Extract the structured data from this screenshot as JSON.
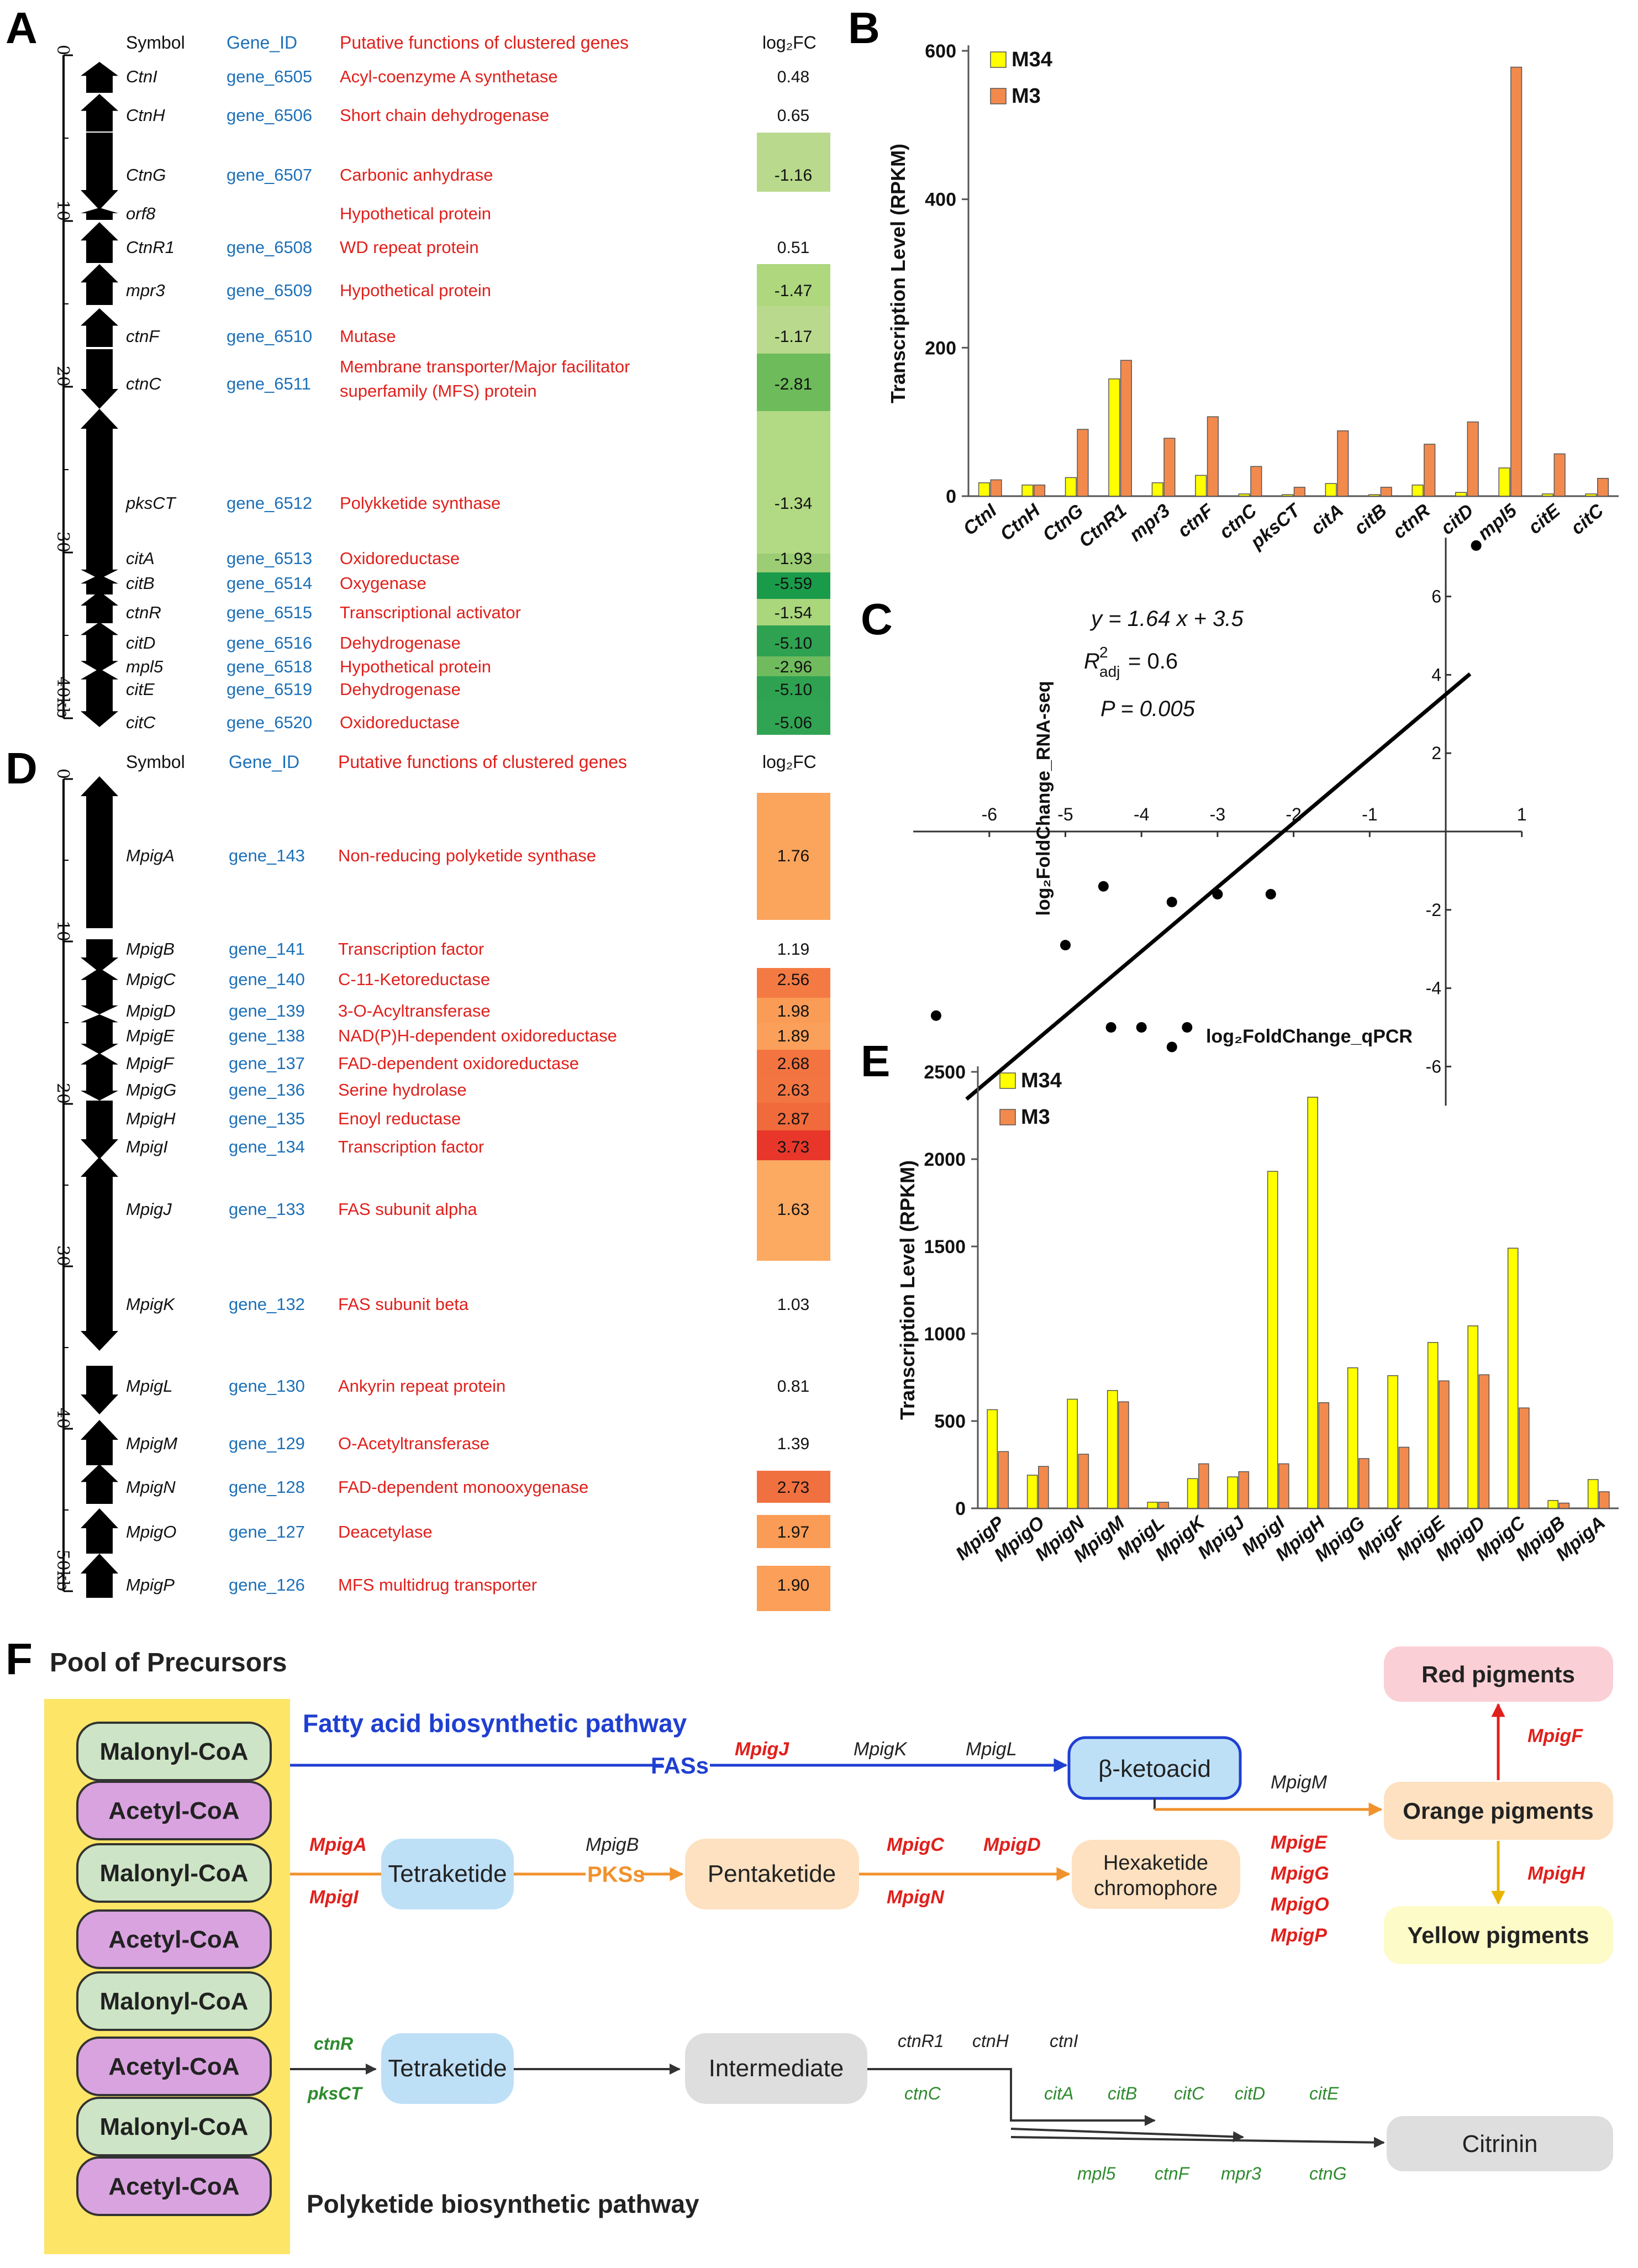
{
  "panel_letters": {
    "a": "A",
    "b": "B",
    "c": "C",
    "d": "D",
    "e": "E",
    "f": "F"
  },
  "panel_a": {
    "headers": {
      "symbol": "Symbol",
      "gene_id": "Gene_ID",
      "function": "Putative functions of clustered genes",
      "fc": "log₂FC"
    },
    "ruler": {
      "ticks": [
        "0",
        "10",
        "20",
        "30",
        "40kb"
      ]
    },
    "rows": [
      {
        "symbol": "CtnI",
        "gene_id": "gene_6505",
        "function": [
          "Acyl-coenzyme A synthetase"
        ],
        "fc": "0.48",
        "cell": "none",
        "dir": "up"
      },
      {
        "symbol": "CtnH",
        "gene_id": "gene_6506",
        "function": [
          "Short chain dehydrogenase"
        ],
        "fc": "0.65",
        "cell": "none",
        "dir": "up"
      },
      {
        "symbol": "CtnG",
        "gene_id": "gene_6507",
        "function": [
          "Carbonic anhydrase"
        ],
        "fc": "-1.16",
        "cell": "#b9d98c",
        "dir": "down"
      },
      {
        "symbol": "orf8",
        "gene_id": "",
        "function": [
          "Hypothetical protein"
        ],
        "fc": "",
        "cell": "none",
        "dir": "up"
      },
      {
        "symbol": "CtnR1",
        "gene_id": "gene_6508",
        "function": [
          "WD repeat protein"
        ],
        "fc": "0.51",
        "cell": "none",
        "dir": "up"
      },
      {
        "symbol": "mpr3",
        "gene_id": "gene_6509",
        "function": [
          "Hypothetical protein"
        ],
        "fc": "-1.47",
        "cell": "#aed77e",
        "dir": "up"
      },
      {
        "symbol": "ctnF",
        "gene_id": "gene_6510",
        "function": [
          "Mutase"
        ],
        "fc": "-1.17",
        "cell": "#b9d98c",
        "dir": "up"
      },
      {
        "symbol": "ctnC",
        "gene_id": "gene_6511",
        "function": [
          "Membrane transporter/Major facilitator",
          "superfamily (MFS) protein"
        ],
        "fc": "-2.81",
        "cell": "#6dbb5b",
        "dir": "down"
      },
      {
        "symbol": "pksCT",
        "gene_id": "gene_6512",
        "function": [
          "Polykketide synthase"
        ],
        "fc": "-1.34",
        "cell": "#b2d983",
        "dir": "up"
      },
      {
        "symbol": "citA",
        "gene_id": "gene_6513",
        "function": [
          "Oxidoreductase"
        ],
        "fc": "-1.93",
        "cell": "#9ccd74",
        "dir": "down"
      },
      {
        "symbol": "citB",
        "gene_id": "gene_6514",
        "function": [
          "Oxygenase"
        ],
        "fc": "-5.59",
        "cell": "#1a9b4a",
        "dir": "up"
      },
      {
        "symbol": "ctnR",
        "gene_id": "gene_6515",
        "function": [
          "Transcriptional activator"
        ],
        "fc": "-1.54",
        "cell": "#aad67c",
        "dir": "up"
      },
      {
        "symbol": "citD",
        "gene_id": "gene_6516",
        "function": [
          "Dehydrogenase"
        ],
        "fc": "-5.10",
        "cell": "#2ea251",
        "dir": "up"
      },
      {
        "symbol": "mpl5",
        "gene_id": "gene_6518",
        "function": [
          "Hypothetical protein"
        ],
        "fc": "-2.96",
        "cell": "#6fbb5e",
        "dir": "down"
      },
      {
        "symbol": "citE",
        "gene_id": "gene_6519",
        "function": [
          "Dehydrogenase"
        ],
        "fc": "-5.10",
        "cell": "#2ea251",
        "dir": "up"
      },
      {
        "symbol": "citC",
        "gene_id": "gene_6520",
        "function": [
          "Oxidoreductase"
        ],
        "fc": "-5.06",
        "cell": "#31a453",
        "dir": "down"
      }
    ]
  },
  "panel_d": {
    "headers": {
      "symbol": "Symbol",
      "gene_id": "Gene_ID",
      "function": "Putative functions of clustered genes",
      "fc": "log₂FC"
    },
    "ruler": {
      "ticks": [
        "0",
        "10",
        "20",
        "30",
        "40",
        "50kb"
      ]
    },
    "rows": [
      {
        "symbol": "MpigA",
        "gene_id": "gene_143",
        "function": "Non-reducing polyketide synthase",
        "fc": "1.76",
        "cell": "#fba45c",
        "dir": "up"
      },
      {
        "symbol": "MpigB",
        "gene_id": "gene_141",
        "function": "Transcription factor",
        "fc": "1.19",
        "cell": "none",
        "dir": "down"
      },
      {
        "symbol": "MpigC",
        "gene_id": "gene_140",
        "function": "C-11-Ketoreductase",
        "fc": "2.56",
        "cell": "#f47a44",
        "dir": "up"
      },
      {
        "symbol": "MpigD",
        "gene_id": "gene_139",
        "function": "3-O-Acyltransferase",
        "fc": "1.98",
        "cell": "#fa9c56",
        "dir": "down"
      },
      {
        "symbol": "MpigE",
        "gene_id": "gene_138",
        "function": "NAD(P)H-dependent oxidoreductase",
        "fc": "1.89",
        "cell": "#fba05a",
        "dir": "up"
      },
      {
        "symbol": "MpigF",
        "gene_id": "gene_137",
        "function": "FAD-dependent oxidoreductase",
        "fc": "2.68",
        "cell": "#f37440",
        "dir": "down"
      },
      {
        "symbol": "MpigG",
        "gene_id": "gene_136",
        "function": "Serine hydrolase",
        "fc": "2.63",
        "cell": "#f37642",
        "dir": "up"
      },
      {
        "symbol": "MpigH",
        "gene_id": "gene_135",
        "function": "Enoyl reductase",
        "fc": "2.87",
        "cell": "#f06a3b",
        "dir": "down"
      },
      {
        "symbol": "MpigI",
        "gene_id": "gene_134",
        "function": "Transcription factor",
        "fc": "3.73",
        "cell": "#e8372a",
        "dir": "down"
      },
      {
        "symbol": "MpigJ",
        "gene_id": "gene_133",
        "function": "FAS subunit alpha",
        "fc": "1.63",
        "cell": "#fca961",
        "dir": "up"
      },
      {
        "symbol": "MpigK",
        "gene_id": "gene_132",
        "function": "FAS subunit beta",
        "fc": "1.03",
        "cell": "none",
        "dir": "down"
      },
      {
        "symbol": "MpigL",
        "gene_id": "gene_130",
        "function": "Ankyrin repeat protein",
        "fc": "0.81",
        "cell": "none",
        "dir": "down"
      },
      {
        "symbol": "MpigM",
        "gene_id": "gene_129",
        "function": "O-Acetyltransferase",
        "fc": "1.39",
        "cell": "none",
        "dir": "up"
      },
      {
        "symbol": "MpigN",
        "gene_id": "gene_128",
        "function": "FAD-dependent monooxygenase",
        "fc": "2.73",
        "cell": "#f1703f",
        "dir": "up"
      },
      {
        "symbol": "MpigO",
        "gene_id": "gene_127",
        "function": "Deacetylase",
        "fc": "1.97",
        "cell": "#fa9c56",
        "dir": "up"
      },
      {
        "symbol": "MpigP",
        "gene_id": "gene_126",
        "function": "MFS multidrug transporter",
        "fc": "1.90",
        "cell": "#fb9f59",
        "dir": "up"
      }
    ]
  },
  "chart_data": [
    {
      "id": "B",
      "type": "bar",
      "title": "",
      "xlabel": "",
      "ylabel": "Transcription Level (RPKM)",
      "ylim": [
        0,
        600
      ],
      "yticks": [
        "0",
        "200",
        "400",
        "600"
      ],
      "categories": [
        "CtnI",
        "CtnH",
        "CtnG",
        "CtnR1",
        "mpr3",
        "ctnF",
        "ctnC",
        "pksCT",
        "citA",
        "citB",
        "ctnR",
        "citD",
        "mpl5",
        "citE",
        "citC"
      ],
      "series": [
        {
          "name": "M34",
          "color": "#ffff00",
          "values": [
            18,
            15,
            25,
            158,
            18,
            28,
            3,
            2,
            17,
            2,
            15,
            5,
            38,
            3,
            3
          ]
        },
        {
          "name": "M3",
          "color": "#f28a4d",
          "values": [
            22,
            15,
            90,
            183,
            78,
            107,
            40,
            12,
            88,
            12,
            70,
            100,
            578,
            57,
            24
          ]
        }
      ],
      "legend": "top-left"
    },
    {
      "id": "C",
      "type": "scatter",
      "xlabel": "log₂FoldChange_qPCR",
      "ylabel": "log₂FoldChange_RNA-seq",
      "xlim": [
        -7,
        1
      ],
      "ylim": [
        -7,
        7.5
      ],
      "xticks": [
        "-6",
        "-5",
        "-4",
        "-3",
        "-2",
        "-1",
        "1"
      ],
      "yticks": [
        "-6",
        "-4",
        "-2",
        "2",
        "4",
        "6"
      ],
      "annotations": {
        "equation": "y = 1.64 x + 3.5",
        "r2_label": "R",
        "r2_sup": "2",
        "r2_sub": "adj",
        "r2_value": "= 0.6",
        "p_value": "P = 0.005"
      },
      "regression": {
        "slope": 1.64,
        "intercept": 3.5,
        "x_range": [
          -6.3,
          0.32
        ]
      },
      "points": [
        [
          0.4,
          7.3
        ],
        [
          -4.5,
          -1.4
        ],
        [
          -3.6,
          -1.8
        ],
        [
          -3.0,
          -1.6
        ],
        [
          -2.3,
          -1.6
        ],
        [
          -5.0,
          -2.9
        ],
        [
          -6.7,
          -4.7
        ],
        [
          -4.4,
          -5.0
        ],
        [
          -4.0,
          -5.0
        ],
        [
          -3.4,
          -5.0
        ],
        [
          -3.6,
          -5.5
        ]
      ]
    },
    {
      "id": "E",
      "type": "bar",
      "title": "",
      "xlabel": "",
      "ylabel": "Transcription Level (RPKM)",
      "ylim": [
        0,
        2500
      ],
      "yticks": [
        "0",
        "500",
        "1000",
        "1500",
        "2000",
        "2500"
      ],
      "categories": [
        "MpigP",
        "MpigO",
        "MpigN",
        "MpigM",
        "MpigL",
        "MpigK",
        "MpigJ",
        "MpigI",
        "MpigH",
        "MpigG",
        "MpigF",
        "MpigE",
        "MpigD",
        "MpigC",
        "MpigB",
        "MpigA"
      ],
      "series": [
        {
          "name": "M34",
          "color": "#ffff00",
          "values": [
            565,
            190,
            625,
            675,
            35,
            170,
            180,
            1930,
            2355,
            805,
            760,
            950,
            1045,
            1490,
            45,
            165
          ]
        },
        {
          "name": "M3",
          "color": "#f28a4d",
          "values": [
            325,
            240,
            310,
            610,
            35,
            255,
            210,
            255,
            605,
            285,
            350,
            730,
            765,
            575,
            30,
            95
          ]
        }
      ],
      "legend": "top-left"
    }
  ],
  "panel_f": {
    "title": "Pool of Precursors",
    "pool": [
      "Malonyl-CoA",
      "Acetyl-CoA",
      "Malonyl-CoA",
      "Acetyl-CoA",
      "Malonyl-CoA",
      "Acetyl-CoA",
      "Malonyl-CoA",
      "Acetyl-CoA"
    ],
    "fatty_acid_label": "Fatty acid biosynthetic pathway",
    "polyketide_label": "Polyketide biosynthetic pathway",
    "fas": "FASs",
    "pks": "PKSs",
    "nodes": {
      "beta_ketoacid": "β-ketoacid",
      "tetraketide1": "Tetraketide",
      "pentaketide": "Pentaketide",
      "hexaketide": [
        "Hexaketide",
        "chromophore"
      ],
      "red": "Red pigments",
      "orange": "Orange pigments",
      "yellow": "Yellow pigments",
      "tetraketide2": "Tetraketide",
      "intermediate": "Intermediate",
      "citrinin": "Citrinin"
    },
    "genes": {
      "mpigJ": "MpigJ",
      "mpigK": "MpigK",
      "mpigL": "MpigL",
      "mpigM": "MpigM",
      "mpigA": "MpigA",
      "mpigI": "MpigI",
      "mpigB": "MpigB",
      "mpigC": "MpigC",
      "mpigD": "MpigD",
      "mpigN": "MpigN",
      "mpigE": "MpigE",
      "mpigG": "MpigG",
      "mpigO": "MpigO",
      "mpigP": "MpigP",
      "mpigF": "MpigF",
      "mpigH": "MpigH",
      "ctnR": "ctnR",
      "pksCT": "pksCT",
      "ctnR1": "ctnR1",
      "ctnH": "ctnH",
      "ctnI": "ctnI",
      "ctnC": "ctnC",
      "citA": "citA",
      "citB": "citB",
      "citC": "citC",
      "citD": "citD",
      "citE": "citE",
      "mpl5": "mpl5",
      "ctnF": "ctnF",
      "mpr3": "mpr3",
      "ctnG": "ctnG"
    }
  }
}
